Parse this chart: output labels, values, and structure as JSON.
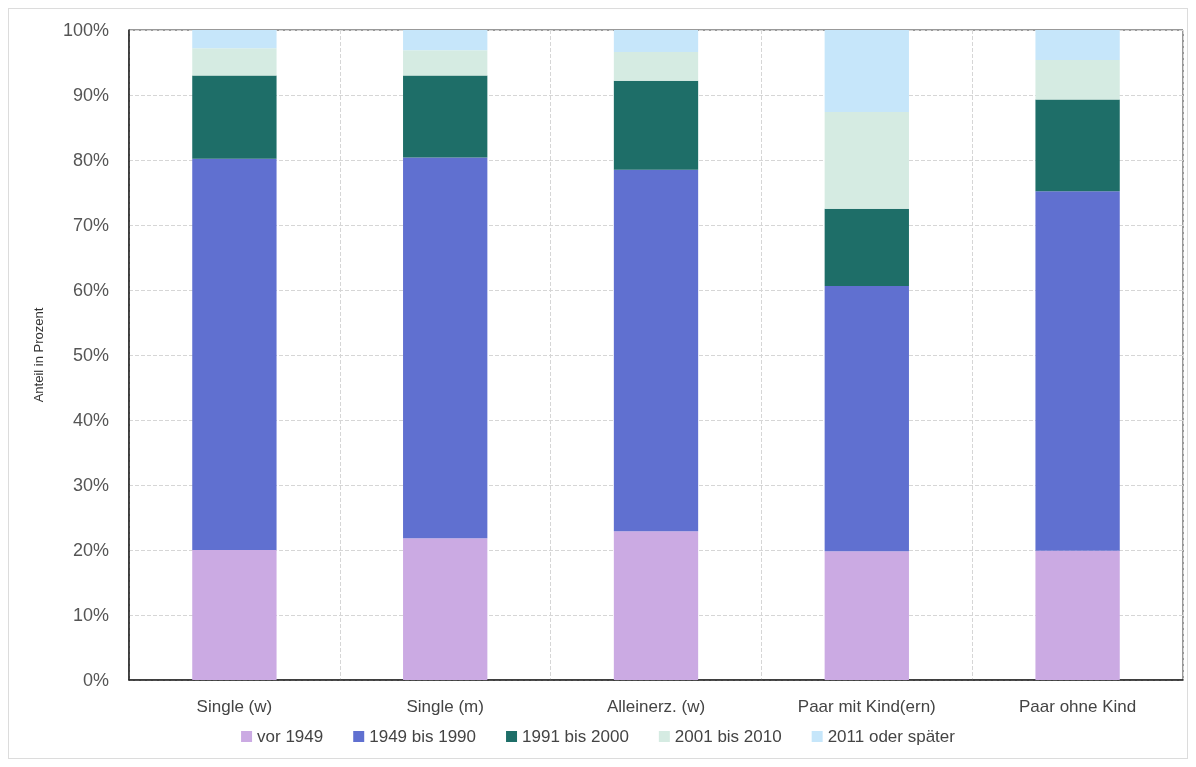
{
  "chart_data": {
    "type": "bar",
    "ylabel": "Anteil in Prozent",
    "categories": [
      "Single (w)",
      "Single (m)",
      "Alleinerz. (w)",
      "Paar mit Kind(ern)",
      "Paar ohne Kind"
    ],
    "series": [
      {
        "name": "vor 1949",
        "color": "#cbaae3",
        "values": [
          20.0,
          21.8,
          22.9,
          19.8,
          19.9
        ]
      },
      {
        "name": "1949 bis 1990",
        "color": "#6070d0",
        "values": [
          60.2,
          58.6,
          55.6,
          40.8,
          55.3
        ]
      },
      {
        "name": "1991 bis 2000",
        "color": "#1e6e68",
        "values": [
          12.8,
          12.6,
          13.7,
          11.9,
          14.1
        ]
      },
      {
        "name": "2001 bis 2010",
        "color": "#d5ebe2",
        "values": [
          4.2,
          3.9,
          4.4,
          14.9,
          6.1
        ]
      },
      {
        "name": "2011 oder später",
        "color": "#c6e6fa",
        "values": [
          2.8,
          3.1,
          3.4,
          12.6,
          4.6
        ]
      }
    ],
    "stacked": true,
    "ylim": [
      0,
      100
    ],
    "yticks": [
      {
        "value": 0,
        "label": "0%"
      },
      {
        "value": 10,
        "label": "10%"
      },
      {
        "value": 20,
        "label": "20%"
      },
      {
        "value": 30,
        "label": "30%"
      },
      {
        "value": 40,
        "label": "40%"
      },
      {
        "value": 50,
        "label": "50%"
      },
      {
        "value": 60,
        "label": "60%"
      },
      {
        "value": 70,
        "label": "70%"
      },
      {
        "value": 80,
        "label": "80%"
      },
      {
        "value": 90,
        "label": "90%"
      },
      {
        "value": 100,
        "label": "100%"
      }
    ],
    "grid": true,
    "legend": "bottom"
  }
}
